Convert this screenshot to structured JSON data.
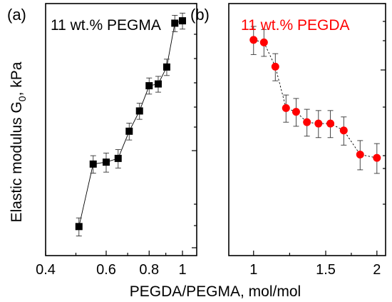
{
  "ylabel_main": "Elastic modulus G",
  "ylabel_sub": "0",
  "ylabel_unit": ", kPa",
  "xlabel": "PEGDA/PEGMA, mol/mol",
  "chart_data": [
    {
      "type": "scatter",
      "panel_label": "(a)",
      "title": "11 wt.% PEGMA",
      "title_color": "#000000",
      "marker": "square",
      "marker_color": "#000000",
      "connected": true,
      "x_scale": "log",
      "xlim": [
        0.4,
        1.1
      ],
      "x_ticks": [
        0.4,
        0.6,
        0.8,
        1.0
      ],
      "x_tick_labels": [
        "0.4",
        "0.6",
        "0.8",
        "1"
      ],
      "y_scale": "log",
      "y_tick_labels": "none",
      "x": [
        0.5,
        0.55,
        0.6,
        0.65,
        0.7,
        0.75,
        0.8,
        0.85,
        0.9,
        0.95,
        1.0
      ],
      "y": [
        0.28,
        0.52,
        0.53,
        0.55,
        0.72,
        0.88,
        1.13,
        1.15,
        1.36,
        2.1,
        2.15
      ],
      "y_err": [
        0.025,
        0.045,
        0.05,
        0.05,
        0.06,
        0.07,
        0.09,
        0.09,
        0.11,
        0.17,
        0.17
      ]
    },
    {
      "type": "scatter",
      "panel_label": "(b)",
      "title": "11 wt.% PEGDA",
      "title_color": "#ff0000",
      "marker": "circle",
      "marker_color": "#ff0000",
      "connected": true,
      "connector_style": "dashed",
      "x_scale": "log",
      "xlim": [
        0.87,
        2.1
      ],
      "x_ticks": [
        1.0,
        1.5,
        2.0
      ],
      "x_tick_labels": [
        "1",
        "1.5",
        "2"
      ],
      "y_scale": "log",
      "y_tick_labels": "none",
      "x": [
        1.0,
        1.06,
        1.13,
        1.2,
        1.27,
        1.35,
        1.44,
        1.54,
        1.66,
        1.82,
        2.0
      ],
      "y": [
        2.06,
        2.03,
        1.76,
        1.38,
        1.35,
        1.27,
        1.26,
        1.26,
        1.21,
        1.05,
        1.03
      ],
      "y_err": [
        0.17,
        0.16,
        0.14,
        0.11,
        0.11,
        0.1,
        0.1,
        0.1,
        0.1,
        0.09,
        0.09
      ]
    }
  ]
}
